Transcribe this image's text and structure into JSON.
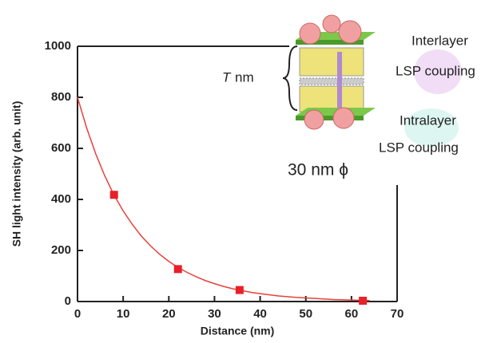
{
  "chart_data": {
    "type": "scatter",
    "x_label": "Distance (nm)",
    "y_label": "SH light intensity (arb. unit)",
    "xlim": [
      0,
      70
    ],
    "xticks": [
      0,
      10,
      20,
      30,
      40,
      50,
      60,
      70
    ],
    "ylim": [
      0,
      1000
    ],
    "yticks": [
      0,
      200,
      400,
      600,
      800,
      1000
    ],
    "series": [
      {
        "type": "scatter",
        "color": "#e8202a",
        "x": [
          8,
          22,
          35.5,
          62.5
        ],
        "values": [
          418,
          127,
          45,
          3
        ]
      },
      {
        "type": "line",
        "color": "#e8403a",
        "x": [
          0,
          2,
          4,
          6,
          8,
          10,
          12,
          14,
          16,
          18,
          20,
          22,
          24,
          26,
          28,
          30,
          32,
          34,
          36,
          38,
          40,
          44,
          48,
          52,
          56,
          60,
          64
        ],
        "values": [
          800,
          680,
          578,
          491,
          417,
          355,
          302,
          256,
          218,
          185,
          157,
          134,
          114,
          97,
          82,
          70,
          59,
          50,
          43,
          36,
          31,
          22,
          16,
          12,
          8,
          6,
          4
        ]
      }
    ],
    "annotations": [
      "Interlayer",
      "LSP coupling",
      "T",
      "nm",
      "Intralayer",
      "LSP coupling",
      "30 nm ϕ"
    ]
  }
}
